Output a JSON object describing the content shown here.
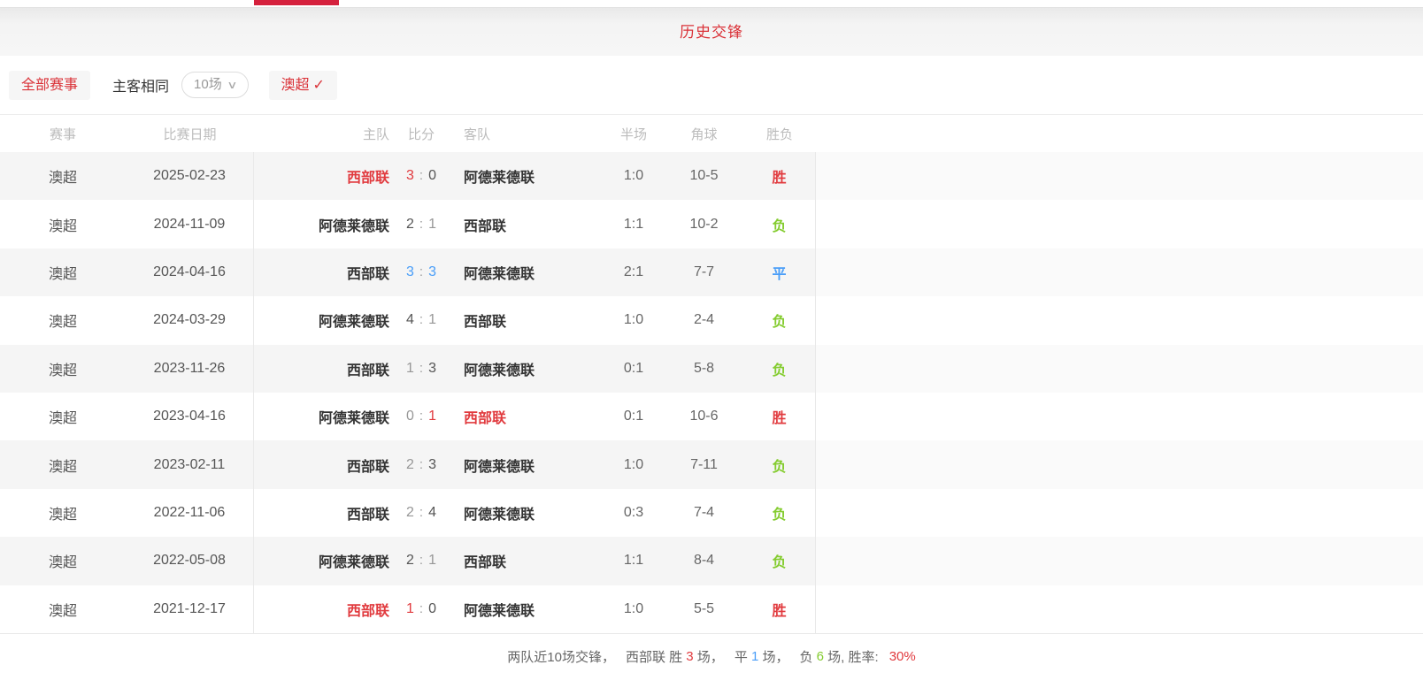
{
  "colors": {
    "accent_red": "#e13a3e",
    "tab_red": "#d5213d",
    "win_red": "#e13a3e",
    "lose_green": "#84cc2f",
    "draw_blue": "#4a9ef8",
    "header_gray": "#bcbcbc"
  },
  "header": {
    "title": "历史交锋"
  },
  "filters": {
    "all_events_label": "全部赛事",
    "home_away_same_label": "主客相同",
    "match_count_value": "10场",
    "chevron_icon": "∨",
    "league_filter_label": "澳超",
    "check_icon": "✓"
  },
  "table": {
    "columns": {
      "league": "赛事",
      "date": "比赛日期",
      "home": "主队",
      "score": "比分",
      "away": "客队",
      "half": "半场",
      "corner": "角球",
      "result": "胜负"
    },
    "rows": [
      {
        "league": "澳超",
        "date": "2025-02-23",
        "home": "西部联",
        "home_highlight": true,
        "score_home": "3",
        "score_away": "0",
        "score_sep": ":",
        "home_score_color": "red",
        "away_score_color": "dark",
        "away": "阿德莱德联",
        "away_highlight": false,
        "half": "1:0",
        "corner": "10-5",
        "result": "胜",
        "result_type": "win"
      },
      {
        "league": "澳超",
        "date": "2024-11-09",
        "home": "阿德莱德联",
        "home_highlight": false,
        "score_home": "2",
        "score_away": "1",
        "score_sep": ":",
        "home_score_color": "dark",
        "away_score_color": "gray",
        "away": "西部联",
        "away_highlight": false,
        "half": "1:1",
        "corner": "10-2",
        "result": "负",
        "result_type": "lose"
      },
      {
        "league": "澳超",
        "date": "2024-04-16",
        "home": "西部联",
        "home_highlight": false,
        "score_home": "3",
        "score_away": "3",
        "score_sep": ":",
        "home_score_color": "blue",
        "away_score_color": "blue",
        "away": "阿德莱德联",
        "away_highlight": false,
        "half": "2:1",
        "corner": "7-7",
        "result": "平",
        "result_type": "draw"
      },
      {
        "league": "澳超",
        "date": "2024-03-29",
        "home": "阿德莱德联",
        "home_highlight": false,
        "score_home": "4",
        "score_away": "1",
        "score_sep": ":",
        "home_score_color": "dark",
        "away_score_color": "gray",
        "away": "西部联",
        "away_highlight": false,
        "half": "1:0",
        "corner": "2-4",
        "result": "负",
        "result_type": "lose"
      },
      {
        "league": "澳超",
        "date": "2023-11-26",
        "home": "西部联",
        "home_highlight": false,
        "score_home": "1",
        "score_away": "3",
        "score_sep": ":",
        "home_score_color": "gray",
        "away_score_color": "dark",
        "away": "阿德莱德联",
        "away_highlight": false,
        "half": "0:1",
        "corner": "5-8",
        "result": "负",
        "result_type": "lose"
      },
      {
        "league": "澳超",
        "date": "2023-04-16",
        "home": "阿德莱德联",
        "home_highlight": false,
        "score_home": "0",
        "score_away": "1",
        "score_sep": ":",
        "home_score_color": "gray",
        "away_score_color": "red",
        "away": "西部联",
        "away_highlight": true,
        "half": "0:1",
        "corner": "10-6",
        "result": "胜",
        "result_type": "win"
      },
      {
        "league": "澳超",
        "date": "2023-02-11",
        "home": "西部联",
        "home_highlight": false,
        "score_home": "2",
        "score_away": "3",
        "score_sep": ":",
        "home_score_color": "gray",
        "away_score_color": "dark",
        "away": "阿德莱德联",
        "away_highlight": false,
        "half": "1:0",
        "corner": "7-11",
        "result": "负",
        "result_type": "lose"
      },
      {
        "league": "澳超",
        "date": "2022-11-06",
        "home": "西部联",
        "home_highlight": false,
        "score_home": "2",
        "score_away": "4",
        "score_sep": ":",
        "home_score_color": "gray",
        "away_score_color": "dark",
        "away": "阿德莱德联",
        "away_highlight": false,
        "half": "0:3",
        "corner": "7-4",
        "result": "负",
        "result_type": "lose"
      },
      {
        "league": "澳超",
        "date": "2022-05-08",
        "home": "阿德莱德联",
        "home_highlight": false,
        "score_home": "2",
        "score_away": "1",
        "score_sep": ":",
        "home_score_color": "dark",
        "away_score_color": "gray",
        "away": "西部联",
        "away_highlight": false,
        "half": "1:1",
        "corner": "8-4",
        "result": "负",
        "result_type": "lose"
      },
      {
        "league": "澳超",
        "date": "2021-12-17",
        "home": "西部联",
        "home_highlight": true,
        "score_home": "1",
        "score_away": "0",
        "score_sep": ":",
        "home_score_color": "red",
        "away_score_color": "dark",
        "away": "阿德莱德联",
        "away_highlight": false,
        "half": "1:0",
        "corner": "5-5",
        "result": "胜",
        "result_type": "win"
      }
    ]
  },
  "summary": {
    "segments": [
      {
        "text": "两队近10场交锋，",
        "color": "gray",
        "gap": true
      },
      {
        "text": "西部联 胜 ",
        "color": "gray",
        "gap": false
      },
      {
        "text": "3",
        "color": "red",
        "gap": false
      },
      {
        "text": " 场，",
        "color": "gray",
        "gap": true
      },
      {
        "text": "平 ",
        "color": "gray",
        "gap": false
      },
      {
        "text": "1",
        "color": "blue",
        "gap": false
      },
      {
        "text": " 场，",
        "color": "gray",
        "gap": true
      },
      {
        "text": "负 ",
        "color": "gray",
        "gap": false
      },
      {
        "text": "6",
        "color": "green",
        "gap": false
      },
      {
        "text": " 场, 胜率:",
        "color": "gray",
        "gap": true
      },
      {
        "text": "30%",
        "color": "red",
        "gap": false
      }
    ]
  }
}
